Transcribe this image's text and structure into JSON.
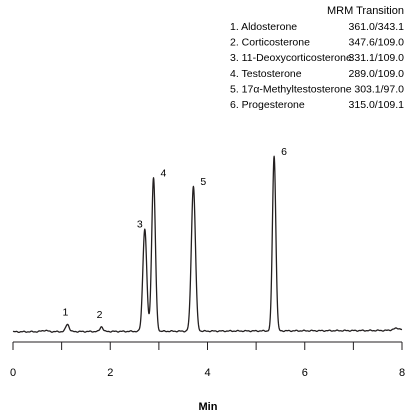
{
  "chart_data": {
    "type": "line",
    "title": "",
    "xlabel": "Min",
    "ylabel": "",
    "xlim": [
      0,
      8
    ],
    "ylim": [
      0,
      100
    ],
    "grid": false,
    "x_ticks": [
      0,
      2,
      4,
      6,
      8
    ],
    "x_minor_step": 1,
    "legend": {
      "header": "MRM Transition",
      "placement": "top-right",
      "entries": [
        {
          "label": "1. Aldosterone",
          "transition": "361.0/343.1"
        },
        {
          "label": "2. Corticosterone",
          "transition": "347.6/109.0"
        },
        {
          "label": "3. 11-Deoxycorticosterone",
          "transition": "331.1/109.0"
        },
        {
          "label": "4. Testosterone",
          "transition": "289.0/109.0"
        },
        {
          "label": "5. 17α-Methyltestosterone",
          "transition": "303.1/97.0"
        },
        {
          "label": "6. Progesterone",
          "transition": "315.0/109.1"
        }
      ]
    },
    "baseline": 1.5,
    "peaks": [
      {
        "label": "1",
        "x": 1.12,
        "height": 3.5,
        "width": 0.035
      },
      {
        "label": "2",
        "x": 1.82,
        "height": 2.3,
        "width": 0.03
      },
      {
        "label": "3",
        "x": 2.71,
        "height": 48,
        "width": 0.04
      },
      {
        "label": "4",
        "x": 2.89,
        "height": 72,
        "width": 0.038
      },
      {
        "label": "5",
        "x": 3.71,
        "height": 68,
        "width": 0.042
      },
      {
        "label": "6",
        "x": 5.37,
        "height": 82,
        "width": 0.035
      }
    ],
    "minor_bumps": [
      {
        "x": 0.65,
        "height": 0.6,
        "width": 0.06
      },
      {
        "x": 7.9,
        "height": 1.0,
        "width": 0.08
      }
    ],
    "trace_color": "#231f20"
  }
}
